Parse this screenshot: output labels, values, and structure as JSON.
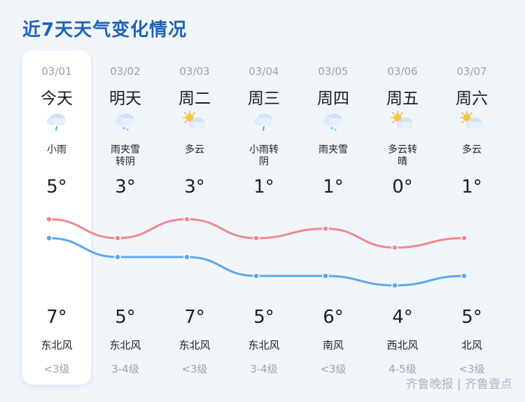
{
  "title": "近7天天气变化情况",
  "days": [
    {
      "date": "03/01",
      "day": "今天",
      "icon": "rain-cloud-icon",
      "cond": "小雨",
      "high": "5°",
      "low": "7°",
      "wind": "东北风",
      "level": "<3级"
    },
    {
      "date": "03/02",
      "day": "明天",
      "icon": "sleet-cloud-icon",
      "cond": "雨夹雪\n转阴",
      "high": "3°",
      "low": "5°",
      "wind": "东北风",
      "level": "3-4级"
    },
    {
      "date": "03/03",
      "day": "周二",
      "icon": "partly-cloudy-icon",
      "cond": "多云",
      "high": "3°",
      "low": "7°",
      "wind": "东北风",
      "level": "<3级"
    },
    {
      "date": "03/04",
      "day": "周三",
      "icon": "rain-cloud-icon",
      "cond": "小雨转\n阴",
      "high": "1°",
      "low": "5°",
      "wind": "东北风",
      "level": "3-4级"
    },
    {
      "date": "03/05",
      "day": "周四",
      "icon": "sleet-cloud-icon",
      "cond": "雨夹雪",
      "high": "1°",
      "low": "6°",
      "wind": "南风",
      "level": "<3级"
    },
    {
      "date": "03/06",
      "day": "周五",
      "icon": "partly-cloudy-icon",
      "cond": "多云转\n晴",
      "high": "0°",
      "low": "4°",
      "wind": "西北风",
      "level": "4-5级"
    },
    {
      "date": "03/07",
      "day": "周六",
      "icon": "partly-cloudy-icon",
      "cond": "多云",
      "high": "1°",
      "low": "5°",
      "wind": "北风",
      "level": "<3级"
    }
  ],
  "colors": {
    "upper_curve": "#f4878e",
    "lower_curve": "#5aa8f0",
    "title": "#1f62b8"
  },
  "watermark": "齐鲁晚报 | 齐鲁壹点"
}
